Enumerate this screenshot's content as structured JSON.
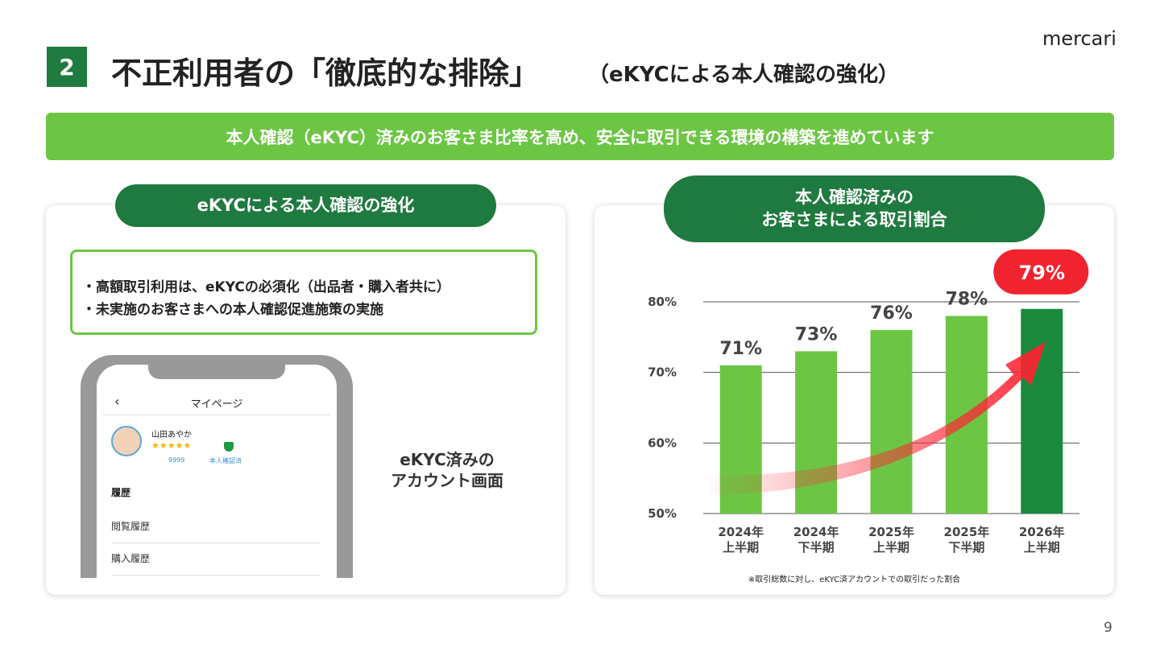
{
  "header": {
    "number": "2",
    "title": "不正利用者の「徹底的な排除」",
    "subtitle": "（eKYCによる本人確認の強化）",
    "logo": "mercari"
  },
  "banner": "本人確認（eKYC）済みのお客さま比率を高め、安全に取引できる環境の構築を進めています",
  "left_panel": {
    "title": "eKYCによる本人確認の強化",
    "bullets": [
      "・高額取引利用は、eKYCの必須化（出品者・購入者共に）",
      "・未実施のお客さまへの本人確認促進施策の実施"
    ],
    "phone": {
      "header": "マイページ",
      "user_name": "山田あやか",
      "rating_count": "9999",
      "badge": "本人確認済",
      "section": "履歴",
      "items": [
        "閲覧履歴",
        "購入履歴"
      ]
    },
    "caption": "eKYC済みの\nアカウント画面"
  },
  "chart_data": {
    "type": "bar",
    "title": "本人確認済みの\nお客さまによる取引割合",
    "categories": [
      "2024年\n上半期",
      "2024年\n下半期",
      "2025年\n上半期",
      "2025年\n下半期",
      "2026年\n上半期"
    ],
    "values": [
      71,
      73,
      76,
      78,
      79
    ],
    "value_labels": [
      "71%",
      "73%",
      "76%",
      "78%",
      "79%"
    ],
    "colors": [
      "#6cc644",
      "#6cc644",
      "#6cc644",
      "#6cc644",
      "#1a8a3c"
    ],
    "ylim": [
      50,
      80
    ],
    "yticks": [
      {
        "value": 50,
        "label": "50%"
      },
      {
        "value": 60,
        "label": "60%"
      },
      {
        "value": 70,
        "label": "70%"
      },
      {
        "value": 80,
        "label": "80%"
      }
    ],
    "grid": true,
    "note": "※取引総数に対し、eKYC済アカウントでの取引だった割合"
  },
  "page_number": "9"
}
